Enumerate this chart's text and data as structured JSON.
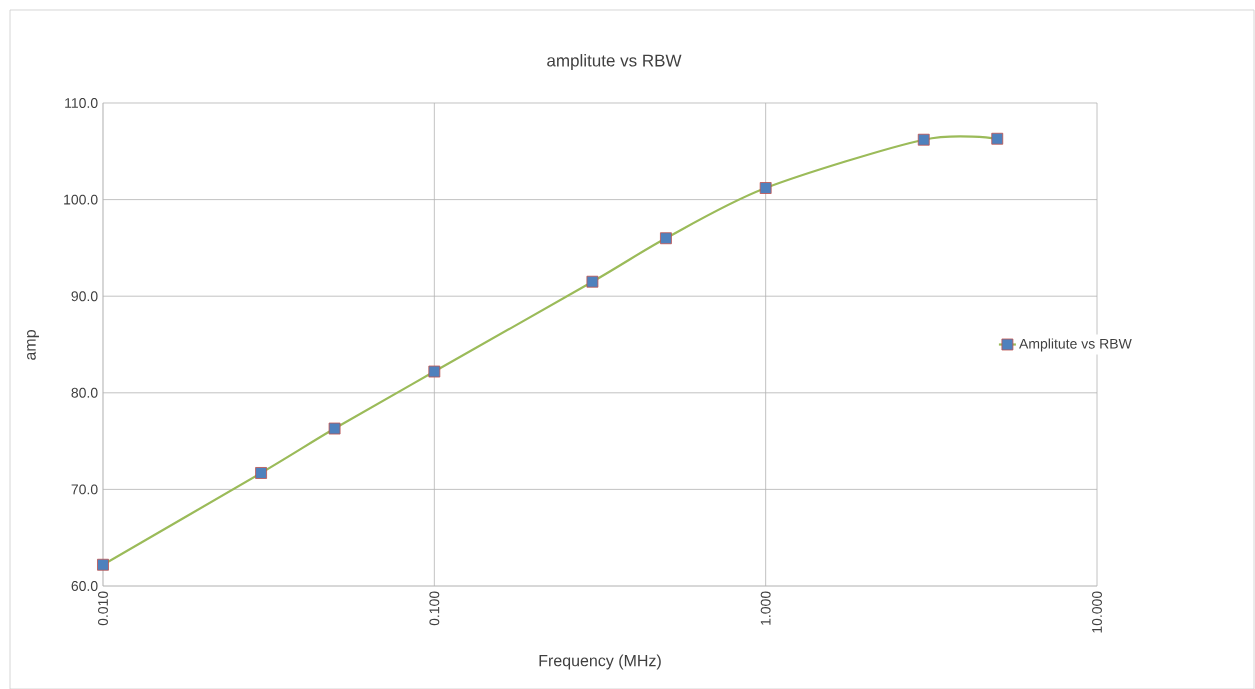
{
  "chart_data": {
    "type": "line",
    "title": "amplitute vs RBW",
    "xlabel": "Frequency (MHz)",
    "ylabel": "amp",
    "x": [
      0.01,
      0.03,
      0.05,
      0.1,
      0.3,
      0.5,
      1,
      3,
      5
    ],
    "series": [
      {
        "name": "Amplitute vs RBW",
        "color": "#9bbb59",
        "values": [
          62.2,
          71.7,
          76.3,
          82.2,
          91.5,
          96.0,
          101.2,
          106.2,
          106.3
        ]
      }
    ],
    "log": "x",
    "xlim": [
      0.01,
      10
    ],
    "xticks": [
      {
        "value": 0.01,
        "label": "0.010"
      },
      {
        "value": 0.1,
        "label": "0.100"
      },
      {
        "value": 1,
        "label": "1.000"
      },
      {
        "value": 10,
        "label": "10.000"
      }
    ],
    "ylim": [
      60,
      110
    ],
    "yticks": [
      {
        "value": 60,
        "label": "60.0"
      },
      {
        "value": 70,
        "label": "70.0"
      },
      {
        "value": 80,
        "label": "80.0"
      },
      {
        "value": 90,
        "label": "90.0"
      },
      {
        "value": 100,
        "label": "100.0"
      },
      {
        "value": 110,
        "label": "110.0"
      }
    ],
    "grid": true,
    "legend": "right",
    "marker": "square",
    "line_style": "solid"
  }
}
